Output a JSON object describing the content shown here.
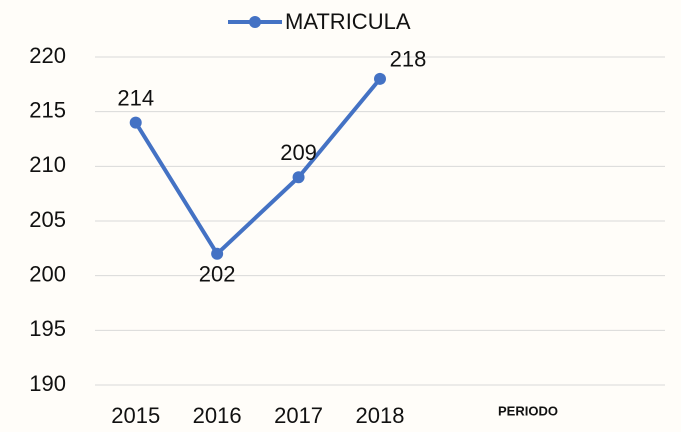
{
  "chart_data": {
    "type": "line",
    "categories": [
      "2015",
      "2016",
      "2017",
      "2018",
      null,
      null,
      null
    ],
    "series": [
      {
        "name": "MATRICULA",
        "color": "#4472c4",
        "values": [
          214,
          202,
          209,
          218,
          null,
          null,
          null
        ]
      }
    ],
    "x_label": "PERIODO",
    "ylim": [
      190,
      220
    ],
    "yticks": [
      190,
      195,
      200,
      205,
      210,
      215,
      220
    ],
    "grid": true,
    "legend": "top"
  }
}
